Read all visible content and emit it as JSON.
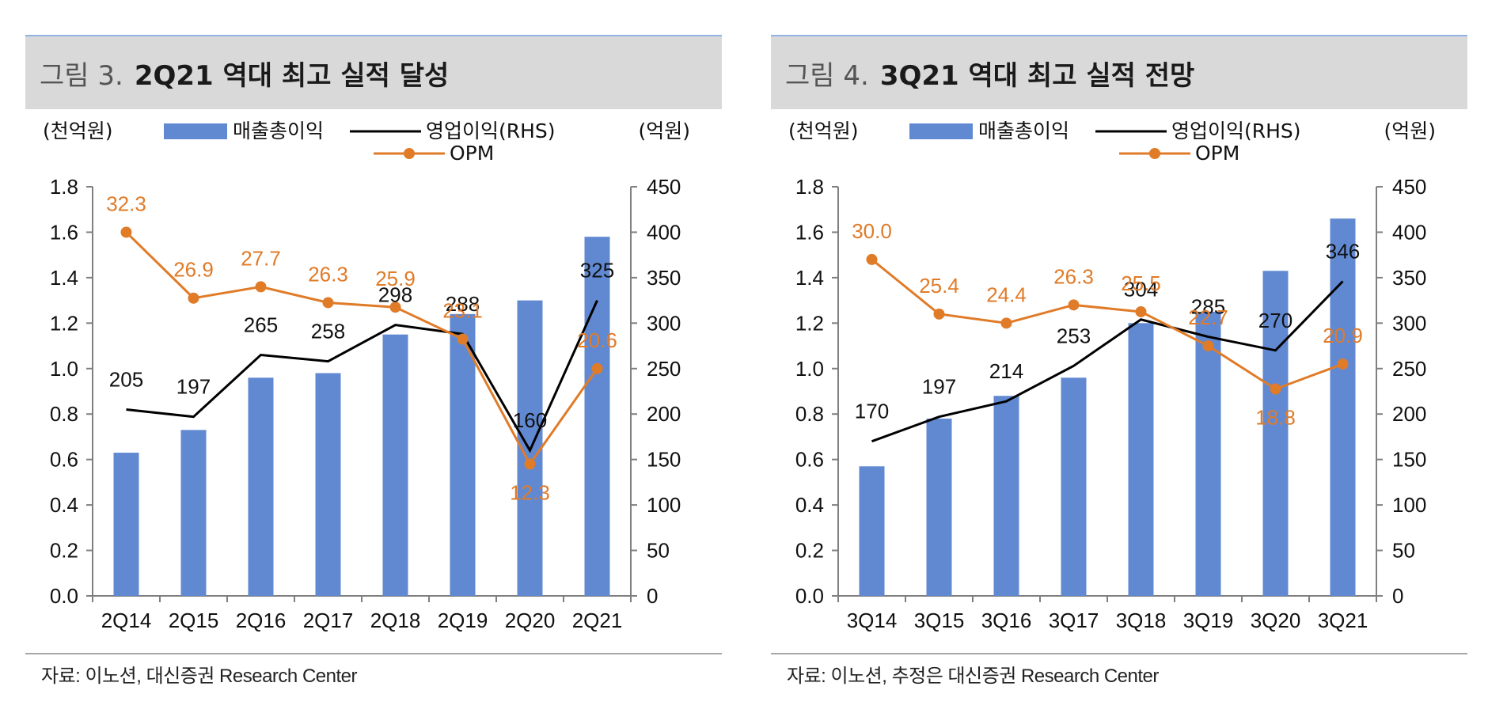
{
  "panels": [
    {
      "title_prefix": "그림 3.",
      "title_main": "2Q21 역대 최고 실적 달성",
      "source": "자료: 이노션, 대신증권 Research Center",
      "units": {
        "left": "(천억원)",
        "right": "(억원)"
      },
      "legend": {
        "bar": "매출총이익",
        "line": "영업이익(RHS)",
        "opm": "OPM"
      },
      "chart_data": {
        "type": "bar",
        "categories": [
          "2Q14",
          "2Q15",
          "2Q16",
          "2Q17",
          "2Q18",
          "2Q19",
          "2Q20",
          "2Q21"
        ],
        "series": [
          {
            "name": "매출총이익",
            "axis": "left",
            "type": "bar",
            "values": [
              0.63,
              0.73,
              0.96,
              0.98,
              1.15,
              1.24,
              1.3,
              1.58
            ]
          },
          {
            "name": "영업이익(RHS)",
            "axis": "right",
            "type": "line",
            "values": [
              205,
              197,
              265,
              258,
              298,
              288,
              160,
              325
            ],
            "labels": [
              "205",
              "197",
              "265",
              "258",
              "298",
              "288",
              "160",
              "325"
            ]
          },
          {
            "name": "OPM",
            "axis": "left",
            "type": "line-marker",
            "values": [
              1.6,
              1.31,
              1.36,
              1.29,
              1.27,
              1.13,
              0.58,
              1.0
            ],
            "labels": [
              "32.3",
              "26.9",
              "27.7",
              "26.3",
              "25.9",
              "23.1",
              "12.3",
              "20.6"
            ]
          }
        ],
        "ylim_left": [
          0,
          1.8
        ],
        "ylim_right": [
          0,
          450
        ],
        "yticks_left": [
          "0.0",
          "0.2",
          "0.4",
          "0.6",
          "0.8",
          "1.0",
          "1.2",
          "1.4",
          "1.6",
          "1.8"
        ],
        "yticks_right": [
          "0",
          "50",
          "100",
          "150",
          "200",
          "250",
          "300",
          "350",
          "400",
          "450"
        ],
        "grid": false,
        "legend_position": "top",
        "colors": {
          "bar": "#6189d2",
          "line": "#000000",
          "opm": "#e07b28"
        }
      }
    },
    {
      "title_prefix": "그림 4.",
      "title_main": "3Q21 역대 최고 실적 전망",
      "source": "자료: 이노션, 추정은 대신증권 Research Center",
      "units": {
        "left": "(천억원)",
        "right": "(억원)"
      },
      "legend": {
        "bar": "매출총이익",
        "line": "영업이익(RHS)",
        "opm": "OPM"
      },
      "chart_data": {
        "type": "bar",
        "categories": [
          "3Q14",
          "3Q15",
          "3Q16",
          "3Q17",
          "3Q18",
          "3Q19",
          "3Q20",
          "3Q21"
        ],
        "series": [
          {
            "name": "매출총이익",
            "axis": "left",
            "type": "bar",
            "values": [
              0.57,
              0.78,
              0.88,
              0.96,
              1.2,
              1.25,
              1.43,
              1.66
            ]
          },
          {
            "name": "영업이익(RHS)",
            "axis": "right",
            "type": "line",
            "values": [
              170,
              197,
              214,
              253,
              304,
              285,
              270,
              346
            ],
            "labels": [
              "170",
              "197",
              "214",
              "253",
              "304",
              "285",
              "270",
              "346"
            ]
          },
          {
            "name": "OPM",
            "axis": "left",
            "type": "line-marker",
            "values": [
              1.48,
              1.24,
              1.2,
              1.28,
              1.25,
              1.1,
              0.91,
              1.02
            ],
            "labels": [
              "30.0",
              "25.4",
              "24.4",
              "26.3",
              "25.5",
              "22.7",
              "18.8",
              "20.9"
            ]
          }
        ],
        "ylim_left": [
          0,
          1.8
        ],
        "ylim_right": [
          0,
          450
        ],
        "yticks_left": [
          "0.0",
          "0.2",
          "0.4",
          "0.6",
          "0.8",
          "1.0",
          "1.2",
          "1.4",
          "1.6",
          "1.8"
        ],
        "yticks_right": [
          "0",
          "50",
          "100",
          "150",
          "200",
          "250",
          "300",
          "350",
          "400",
          "450"
        ],
        "grid": false,
        "legend_position": "top",
        "colors": {
          "bar": "#6189d2",
          "line": "#000000",
          "opm": "#e07b28"
        }
      }
    }
  ]
}
